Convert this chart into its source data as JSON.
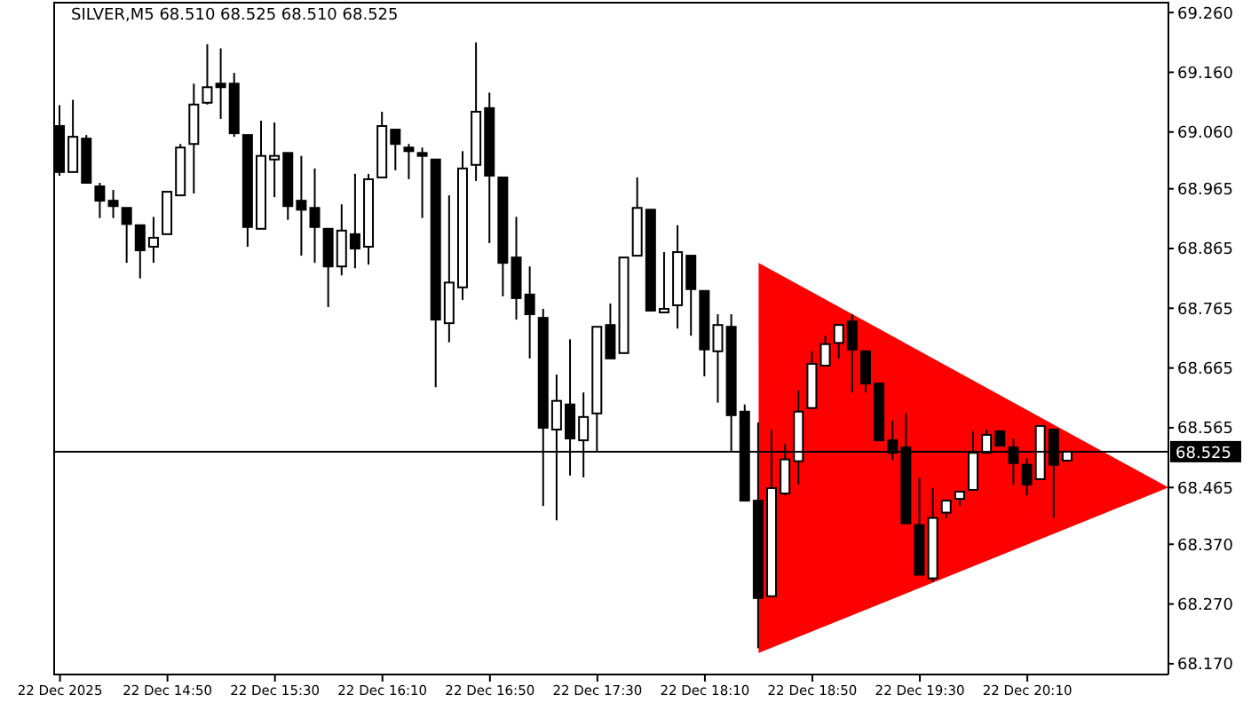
{
  "chart_data": {
    "type": "candlestick",
    "title": "SILVER,M5  68.510 68.525 68.510 68.525",
    "categories": [
      "22 Dec 2025",
      null,
      null,
      null,
      null,
      null,
      null,
      null,
      "22 Dec 14:50",
      null,
      null,
      null,
      null,
      null,
      null,
      null,
      "22 Dec 15:30",
      null,
      null,
      null,
      null,
      null,
      null,
      null,
      "22 Dec 16:10",
      null,
      null,
      null,
      null,
      null,
      null,
      null,
      "22 Dec 16:50",
      null,
      null,
      null,
      null,
      null,
      null,
      null,
      "22 Dec 17:30",
      null,
      null,
      null,
      null,
      null,
      null,
      null,
      "22 Dec 18:10",
      null,
      null,
      null,
      null,
      null,
      null,
      null,
      "22 Dec 18:50",
      null,
      null,
      null,
      null,
      null,
      null,
      null,
      "22 Dec 19:30",
      null,
      null,
      null,
      null,
      null,
      null,
      null,
      "22 Dec 20:10",
      null,
      null,
      null,
      null,
      null,
      null,
      null,
      null,
      null,
      null
    ],
    "ohlc": [
      [
        69.07,
        69.105,
        68.987,
        68.993
      ],
      [
        68.993,
        69.114,
        68.993,
        69.052
      ],
      [
        69.049,
        69.055,
        68.975,
        68.975
      ],
      [
        68.969,
        68.975,
        68.916,
        68.945
      ],
      [
        68.945,
        68.963,
        68.916,
        68.936
      ],
      [
        68.933,
        68.933,
        68.841,
        68.906
      ],
      [
        68.904,
        68.904,
        68.815,
        68.862
      ],
      [
        68.868,
        68.918,
        68.841,
        68.883
      ],
      [
        68.889,
        68.96,
        68.889,
        68.96
      ],
      [
        68.954,
        69.04,
        68.954,
        69.034
      ],
      [
        69.04,
        69.141,
        68.957,
        69.106
      ],
      [
        69.109,
        69.207,
        69.106,
        69.135
      ],
      [
        69.141,
        69.2,
        69.082,
        69.135
      ],
      [
        69.141,
        69.159,
        69.052,
        69.058
      ],
      [
        69.055,
        69.055,
        68.868,
        68.901
      ],
      [
        68.898,
        69.079,
        68.898,
        69.02
      ],
      [
        69.014,
        69.076,
        68.951,
        69.02
      ],
      [
        69.025,
        69.025,
        68.913,
        68.936
      ],
      [
        68.945,
        69.02,
        68.853,
        68.93
      ],
      [
        68.933,
        68.999,
        68.841,
        68.901
      ],
      [
        68.898,
        68.898,
        68.767,
        68.835
      ],
      [
        68.835,
        68.939,
        68.82,
        68.895
      ],
      [
        68.889,
        68.99,
        68.832,
        68.865
      ],
      [
        68.868,
        68.99,
        68.838,
        68.981
      ],
      [
        68.984,
        69.094,
        68.984,
        69.07
      ],
      [
        69.064,
        69.064,
        68.996,
        69.04
      ],
      [
        69.034,
        69.04,
        68.981,
        69.028
      ],
      [
        69.025,
        69.034,
        68.916,
        69.02
      ],
      [
        69.014,
        69.014,
        68.633,
        68.746
      ],
      [
        68.74,
        68.954,
        68.708,
        68.808
      ],
      [
        68.8,
        69.028,
        68.779,
        68.999
      ],
      [
        69.005,
        69.21,
        68.978,
        69.094
      ],
      [
        69.1,
        69.126,
        68.874,
        68.987
      ],
      [
        68.984,
        68.984,
        68.785,
        68.841
      ],
      [
        68.85,
        68.918,
        68.746,
        68.782
      ],
      [
        68.788,
        68.835,
        68.681,
        68.755
      ],
      [
        68.749,
        68.764,
        68.434,
        68.565
      ],
      [
        68.562,
        68.654,
        68.41,
        68.61
      ],
      [
        68.604,
        68.713,
        68.485,
        68.547
      ],
      [
        68.544,
        68.624,
        68.482,
        68.583
      ],
      [
        68.589,
        68.734,
        68.524,
        68.734
      ],
      [
        68.737,
        68.773,
        68.681,
        68.681
      ],
      [
        68.69,
        68.85,
        68.69,
        68.85
      ],
      [
        68.853,
        68.984,
        68.853,
        68.933
      ],
      [
        68.93,
        68.93,
        68.761,
        68.761
      ],
      [
        68.758,
        68.859,
        68.758,
        68.764
      ],
      [
        68.77,
        68.904,
        68.731,
        68.859
      ],
      [
        68.853,
        68.853,
        68.719,
        68.797
      ],
      [
        68.794,
        68.794,
        68.651,
        68.696
      ],
      [
        68.693,
        68.755,
        68.607,
        68.737
      ],
      [
        68.734,
        68.755,
        68.524,
        68.586
      ],
      [
        68.592,
        68.604,
        68.443,
        68.443
      ],
      [
        68.443,
        68.574,
        68.196,
        68.28
      ],
      [
        68.283,
        68.562,
        68.283,
        68.464
      ],
      [
        68.455,
        68.538,
        68.452,
        68.512
      ],
      [
        68.509,
        68.627,
        68.47,
        68.592
      ],
      [
        68.598,
        68.693,
        68.598,
        68.672
      ],
      [
        68.669,
        68.719,
        68.669,
        68.705
      ],
      [
        68.707,
        68.737,
        68.681,
        68.737
      ],
      [
        68.743,
        68.755,
        68.624,
        68.696
      ],
      [
        68.693,
        68.693,
        68.624,
        68.639
      ],
      [
        68.639,
        68.639,
        68.544,
        68.544
      ],
      [
        68.544,
        68.577,
        68.511,
        68.523
      ],
      [
        68.532,
        68.589,
        68.405,
        68.405
      ],
      [
        68.402,
        68.482,
        68.319,
        68.319
      ],
      [
        68.313,
        68.464,
        68.307,
        68.414
      ],
      [
        68.423,
        68.443,
        68.414,
        68.443
      ],
      [
        68.446,
        68.458,
        68.434,
        68.458
      ],
      [
        68.461,
        68.559,
        68.461,
        68.523
      ],
      [
        68.523,
        68.562,
        68.523,
        68.553
      ],
      [
        68.559,
        68.559,
        68.535,
        68.535
      ],
      [
        68.532,
        68.547,
        68.47,
        68.506
      ],
      [
        68.503,
        68.514,
        68.452,
        68.47
      ],
      [
        68.479,
        68.568,
        68.479,
        68.568
      ],
      [
        68.562,
        68.562,
        68.414,
        68.503
      ],
      [
        68.51,
        68.525,
        68.51,
        68.525
      ],
      null,
      null,
      null,
      null,
      null,
      null,
      null
    ],
    "ylim": [
      68.152,
      69.278
    ],
    "yticks": [
      {
        "value": 69.26,
        "label": "69.260"
      },
      {
        "value": 69.16,
        "label": "69.160"
      },
      {
        "value": 69.06,
        "label": "69.060"
      },
      {
        "value": 68.965,
        "label": "68.965"
      },
      {
        "value": 68.865,
        "label": "68.865"
      },
      {
        "value": 68.765,
        "label": "68.765"
      },
      {
        "value": 68.665,
        "label": "68.665"
      },
      {
        "value": 68.565,
        "label": "68.565"
      },
      {
        "value": 68.465,
        "label": "68.465"
      },
      {
        "value": 68.37,
        "label": "68.370"
      },
      {
        "value": 68.27,
        "label": "68.270"
      },
      {
        "value": 68.17,
        "label": "68.170"
      }
    ],
    "ref_lines": [
      {
        "axis": "y",
        "value": 68.525,
        "label": "68.525",
        "color": "#000000"
      }
    ]
  }
}
